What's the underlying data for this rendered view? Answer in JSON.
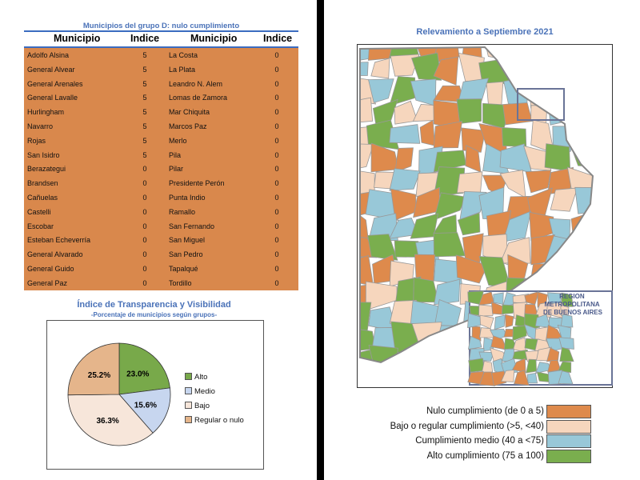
{
  "table": {
    "title": "Municipios del grupo D: nulo cumplimiento",
    "headers": [
      "Municipio",
      "Indice",
      "Municipio",
      "Indice"
    ],
    "rows": [
      [
        "Adolfo Alsina",
        "5",
        "La Costa",
        "0"
      ],
      [
        "General Alvear",
        "5",
        "La Plata",
        "0"
      ],
      [
        "General Arenales",
        "5",
        "Leandro N. Alem",
        "0"
      ],
      [
        "General Lavalle",
        "5",
        "Lomas de Zamora",
        "0"
      ],
      [
        "Hurlingham",
        "5",
        "Mar Chiquita",
        "0"
      ],
      [
        "Navarro",
        "5",
        "Marcos Paz",
        "0"
      ],
      [
        "Rojas",
        "5",
        "Merlo",
        "0"
      ],
      [
        "San Isidro",
        "5",
        "Pila",
        "0"
      ],
      [
        "Berazategui",
        "0",
        "Pilar",
        "0"
      ],
      [
        "Brandsen",
        "0",
        "Presidente Perón",
        "0"
      ],
      [
        "Cañuelas",
        "0",
        "Punta Indio",
        "0"
      ],
      [
        "Castelli",
        "0",
        "Ramallo",
        "0"
      ],
      [
        "Escobar",
        "0",
        "San Fernando",
        "0"
      ],
      [
        "Esteban Echeverría",
        "0",
        "San Miguel",
        "0"
      ],
      [
        "General Alvarado",
        "0",
        "San Pedro",
        "0"
      ],
      [
        "General Guido",
        "0",
        "Tapalqué",
        "0"
      ],
      [
        "General Paz",
        "0",
        "Tordillo",
        "0"
      ]
    ]
  },
  "chart_data": {
    "type": "pie",
    "title": "Índice de Transparencia y Visibilidad",
    "subtitle": "-Porcentaje de municipios según grupos-",
    "legend_position": "right",
    "slices": [
      {
        "label": "Alto",
        "value": 23.0,
        "display": "23.0%",
        "color": "#78a94a"
      },
      {
        "label": "Medio",
        "value": 15.6,
        "display": "15.6%",
        "color": "#c7d6ef"
      },
      {
        "label": "Bajo",
        "value": 36.3,
        "display": "36.3%",
        "color": "#f7e6da"
      },
      {
        "label": "Regular o nulo",
        "value": 25.2,
        "display": "25.2%",
        "color": "#e5b58b"
      }
    ]
  },
  "map": {
    "title": "Relevamiento a Septiembre 2021",
    "inset_label": "REGION METROPOLITANA DE BUENOS AIRES",
    "legend": [
      {
        "label": "Nulo cumplimiento (de 0 a 5)",
        "color": "#de8a4c"
      },
      {
        "label": "Bajo o regular cumplimiento (>5, <40)",
        "color": "#f6d6bd"
      },
      {
        "label": "Cumplimiento medio (40 a <75)",
        "color": "#98c8d8"
      },
      {
        "label": "Alto cumplimiento (75 a 100)",
        "color": "#7aae4e"
      }
    ]
  }
}
